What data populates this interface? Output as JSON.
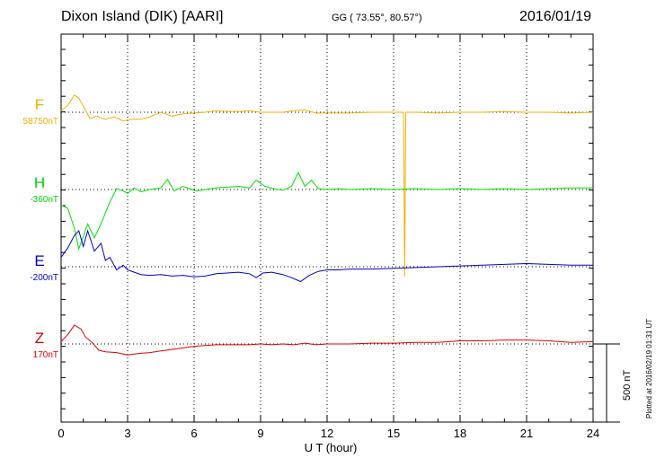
{
  "header": {
    "title": "Dixon Island (DIK)  [AARI]",
    "coords": "GG ( 73.55°,  80.57°)",
    "date": "2016/01/19"
  },
  "footer_note": "Plotted at 2016/02/19 01:31  UT",
  "scale_bar_label": "500 nT",
  "colors": {
    "F": "#f0b000",
    "H": "#00e000",
    "E": "#0000d0",
    "Z": "#e00000",
    "grid": "#000000"
  },
  "chart_data": {
    "type": "line",
    "xlabel": "U T (hour)",
    "xlim": [
      0,
      24
    ],
    "xticks": [
      0,
      3,
      6,
      9,
      12,
      15,
      18,
      21,
      24
    ],
    "grid": "dotted, every 3 hours and at each baseline",
    "scale_nT": 500,
    "series": [
      {
        "name": "F",
        "baseline_label": "58750nT",
        "baseline_nT": 58750,
        "points": [
          [
            0,
            10
          ],
          [
            0.3,
            45
          ],
          [
            0.6,
            110
          ],
          [
            0.8,
            90
          ],
          [
            1.0,
            40
          ],
          [
            1.3,
            -40
          ],
          [
            1.6,
            -25
          ],
          [
            2.0,
            -45
          ],
          [
            2.4,
            -30
          ],
          [
            2.8,
            -55
          ],
          [
            3.2,
            -45
          ],
          [
            3.6,
            -45
          ],
          [
            4.0,
            -30
          ],
          [
            4.5,
            0
          ],
          [
            5.0,
            -25
          ],
          [
            5.5,
            -10
          ],
          [
            6.0,
            -5
          ],
          [
            6.5,
            0
          ],
          [
            7.0,
            10
          ],
          [
            7.5,
            5
          ],
          [
            8.0,
            5
          ],
          [
            8.5,
            10
          ],
          [
            9.0,
            0
          ],
          [
            9.5,
            0
          ],
          [
            10.0,
            0
          ],
          [
            10.5,
            10
          ],
          [
            11.0,
            15
          ],
          [
            11.5,
            -5
          ],
          [
            12.0,
            -5
          ],
          [
            13.0,
            -5
          ],
          [
            14.0,
            0
          ],
          [
            15.0,
            0
          ],
          [
            15.45,
            0
          ],
          [
            15.5,
            -1050
          ],
          [
            15.55,
            0
          ],
          [
            16,
            0
          ],
          [
            17,
            -5
          ],
          [
            18,
            0
          ],
          [
            19,
            0
          ],
          [
            20,
            5
          ],
          [
            21,
            0
          ],
          [
            22,
            0
          ],
          [
            23,
            -5
          ],
          [
            24,
            0
          ]
        ]
      },
      {
        "name": "H",
        "baseline_label": "-360nT",
        "baseline_nT": -360,
        "points": [
          [
            0,
            -100
          ],
          [
            0.3,
            -120
          ],
          [
            0.6,
            -250
          ],
          [
            0.8,
            -380
          ],
          [
            1.0,
            -300
          ],
          [
            1.2,
            -220
          ],
          [
            1.5,
            -310
          ],
          [
            1.8,
            -220
          ],
          [
            2.0,
            -150
          ],
          [
            2.2,
            -80
          ],
          [
            2.5,
            5
          ],
          [
            2.8,
            -10
          ],
          [
            3.0,
            -25
          ],
          [
            3.3,
            10
          ],
          [
            3.6,
            -15
          ],
          [
            4.0,
            0
          ],
          [
            4.5,
            10
          ],
          [
            4.8,
            65
          ],
          [
            5.1,
            -10
          ],
          [
            5.5,
            20
          ],
          [
            5.8,
            5
          ],
          [
            6.1,
            -10
          ],
          [
            6.5,
            0
          ],
          [
            7.0,
            10
          ],
          [
            7.5,
            15
          ],
          [
            8.0,
            20
          ],
          [
            8.5,
            10
          ],
          [
            8.8,
            60
          ],
          [
            9.2,
            20
          ],
          [
            9.6,
            5
          ],
          [
            10.0,
            -5
          ],
          [
            10.4,
            20
          ],
          [
            10.7,
            110
          ],
          [
            11.0,
            20
          ],
          [
            11.3,
            60
          ],
          [
            11.6,
            5
          ],
          [
            12.0,
            0
          ],
          [
            12.5,
            5
          ],
          [
            13.0,
            0
          ],
          [
            14.0,
            5
          ],
          [
            15.0,
            0
          ],
          [
            16.0,
            5
          ],
          [
            17.0,
            0
          ],
          [
            18.0,
            5
          ],
          [
            19.0,
            0
          ],
          [
            20.0,
            5
          ],
          [
            21.0,
            0
          ],
          [
            22.0,
            5
          ],
          [
            23.0,
            10
          ],
          [
            24.0,
            10
          ]
        ]
      },
      {
        "name": "E",
        "baseline_label": "-200nT",
        "baseline_nT": -200,
        "points": [
          [
            0,
            60
          ],
          [
            0.3,
            120
          ],
          [
            0.6,
            200
          ],
          [
            0.8,
            230
          ],
          [
            1.0,
            130
          ],
          [
            1.2,
            230
          ],
          [
            1.5,
            100
          ],
          [
            1.8,
            150
          ],
          [
            2.0,
            40
          ],
          [
            2.2,
            60
          ],
          [
            2.5,
            -20
          ],
          [
            2.8,
            10
          ],
          [
            3.0,
            -20
          ],
          [
            3.3,
            -35
          ],
          [
            3.6,
            -50
          ],
          [
            4.0,
            -55
          ],
          [
            4.5,
            -50
          ],
          [
            5.0,
            -60
          ],
          [
            5.5,
            -55
          ],
          [
            6.0,
            -65
          ],
          [
            6.5,
            -60
          ],
          [
            7.0,
            -45
          ],
          [
            7.5,
            -40
          ],
          [
            8.0,
            -35
          ],
          [
            8.5,
            -45
          ],
          [
            8.8,
            -70
          ],
          [
            9.1,
            -40
          ],
          [
            9.5,
            -35
          ],
          [
            10.0,
            -50
          ],
          [
            10.4,
            -70
          ],
          [
            10.8,
            -95
          ],
          [
            11.2,
            -55
          ],
          [
            11.6,
            -30
          ],
          [
            12.0,
            -20
          ],
          [
            12.5,
            -20
          ],
          [
            13.0,
            -15
          ],
          [
            14.0,
            -15
          ],
          [
            15.0,
            -10
          ],
          [
            16.0,
            -5
          ],
          [
            17.0,
            0
          ],
          [
            18.0,
            5
          ],
          [
            19.0,
            10
          ],
          [
            20.0,
            15
          ],
          [
            21.0,
            20
          ],
          [
            22.0,
            15
          ],
          [
            23.0,
            10
          ],
          [
            24.0,
            10
          ]
        ]
      },
      {
        "name": "Z",
        "baseline_label": "170nT",
        "baseline_nT": 170,
        "points": [
          [
            0,
            15
          ],
          [
            0.3,
            60
          ],
          [
            0.6,
            120
          ],
          [
            0.9,
            95
          ],
          [
            1.1,
            45
          ],
          [
            1.4,
            10
          ],
          [
            1.7,
            -40
          ],
          [
            2.0,
            -50
          ],
          [
            2.5,
            -55
          ],
          [
            3.0,
            -70
          ],
          [
            3.3,
            -65
          ],
          [
            3.6,
            -60
          ],
          [
            4.0,
            -55
          ],
          [
            4.5,
            -45
          ],
          [
            5.0,
            -35
          ],
          [
            5.5,
            -25
          ],
          [
            6.0,
            -15
          ],
          [
            6.5,
            -10
          ],
          [
            7.0,
            -5
          ],
          [
            7.5,
            -5
          ],
          [
            8.0,
            -5
          ],
          [
            8.5,
            -5
          ],
          [
            9.0,
            0
          ],
          [
            9.5,
            -5
          ],
          [
            10.0,
            0
          ],
          [
            10.5,
            -5
          ],
          [
            11.0,
            5
          ],
          [
            11.5,
            -5
          ],
          [
            12.0,
            0
          ],
          [
            13.0,
            0
          ],
          [
            14.0,
            5
          ],
          [
            15.0,
            5
          ],
          [
            16.0,
            10
          ],
          [
            17.0,
            10
          ],
          [
            18.0,
            20
          ],
          [
            19.0,
            20
          ],
          [
            20.0,
            25
          ],
          [
            21.0,
            25
          ],
          [
            22.0,
            20
          ],
          [
            23.0,
            10
          ],
          [
            24.0,
            15
          ]
        ]
      }
    ]
  }
}
